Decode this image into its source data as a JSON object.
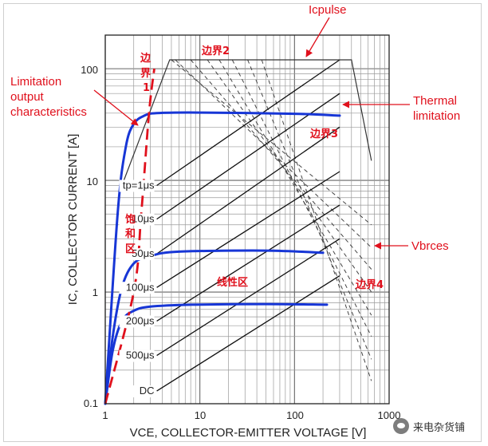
{
  "chart_data": {
    "type": "line",
    "xscale": "log",
    "yscale": "log",
    "xlim": [
      1,
      1000
    ],
    "ylim": [
      0.1,
      200
    ],
    "xlabel": "VCE, COLLECTOR-EMITTER VOLTAGE [V]",
    "ylabel": "IC, COLLECTOR CURRENT [A]",
    "x_ticks": [
      "1",
      "10",
      "100",
      "1000"
    ],
    "y_ticks": [
      "0.1",
      "1",
      "10",
      "100"
    ],
    "soa_boundary": [
      [
        1.5,
        9
      ],
      [
        4.8,
        120
      ],
      [
        400,
        120
      ],
      [
        650,
        15
      ]
    ],
    "pulse_lines": [
      {
        "label": "tp=1μs",
        "points": [
          [
            3.5,
            9
          ],
          [
            300,
            120
          ]
        ]
      },
      {
        "label": "10μs",
        "points": [
          [
            3.5,
            4.5
          ],
          [
            300,
            60
          ]
        ]
      },
      {
        "label": "50μs",
        "points": [
          [
            3.5,
            2.2
          ],
          [
            300,
            30
          ]
        ]
      },
      {
        "label": "100μs",
        "points": [
          [
            3.5,
            1.1
          ],
          [
            300,
            12
          ]
        ]
      },
      {
        "label": "200μs",
        "points": [
          [
            3.5,
            0.55
          ],
          [
            300,
            6
          ]
        ]
      },
      {
        "label": "500μs",
        "points": [
          [
            3.5,
            0.27
          ],
          [
            300,
            3
          ]
        ]
      },
      {
        "label": "DC",
        "points": [
          [
            3.5,
            0.13
          ],
          [
            300,
            1.4
          ]
        ]
      }
    ],
    "dashed_limits": [
      {
        "points": [
          [
            5.0,
            120
          ],
          [
            650,
            4
          ]
        ]
      },
      {
        "points": [
          [
            5.5,
            120
          ],
          [
            650,
            2.5
          ]
        ]
      },
      {
        "points": [
          [
            8.0,
            120
          ],
          [
            650,
            1.6
          ]
        ]
      },
      {
        "points": [
          [
            12,
            120
          ],
          [
            650,
            1.0
          ]
        ]
      },
      {
        "points": [
          [
            16,
            120
          ],
          [
            650,
            0.62
          ]
        ]
      },
      {
        "points": [
          [
            22,
            120
          ],
          [
            650,
            0.4
          ]
        ]
      },
      {
        "points": [
          [
            32,
            120
          ],
          [
            650,
            0.25
          ]
        ]
      },
      {
        "points": [
          [
            45,
            120
          ],
          [
            650,
            0.16
          ]
        ]
      }
    ],
    "output_curves": [
      {
        "name": "high",
        "points": [
          [
            1,
            0.1
          ],
          [
            1.35,
            5
          ],
          [
            1.65,
            20
          ],
          [
            2.0,
            32
          ],
          [
            2.6,
            38
          ],
          [
            3.5,
            40
          ],
          [
            10,
            40.5
          ],
          [
            100,
            39.5
          ],
          [
            300,
            38
          ]
        ]
      },
      {
        "name": "mid",
        "points": [
          [
            1,
            0.1
          ],
          [
            1.2,
            0.4
          ],
          [
            1.5,
            1.1
          ],
          [
            2.0,
            1.8
          ],
          [
            3.0,
            2.1
          ],
          [
            6,
            2.3
          ],
          [
            50,
            2.35
          ],
          [
            200,
            2.25
          ]
        ]
      },
      {
        "name": "low",
        "points": [
          [
            1,
            0.1
          ],
          [
            1.2,
            0.3
          ],
          [
            1.5,
            0.55
          ],
          [
            2.0,
            0.68
          ],
          [
            3.0,
            0.74
          ],
          [
            8,
            0.77
          ],
          [
            50,
            0.78
          ],
          [
            220,
            0.77
          ]
        ]
      }
    ],
    "saturation_boundary": [
      [
        1,
        0.1
      ],
      [
        2.0,
        1.0
      ],
      [
        2.4,
        5
      ],
      [
        2.9,
        40
      ],
      [
        3.3,
        100
      ]
    ],
    "annotations": {
      "icpulse": "Icpulse",
      "limitation": [
        "Limitation",
        "output",
        "characteristics"
      ],
      "thermal": [
        "Thermal",
        "limitation"
      ],
      "vbrces": "Vbrces",
      "b1": [
        "边",
        "界",
        "1"
      ],
      "b2": "边界2",
      "b3": "边界3",
      "b4": "边界4",
      "sat": [
        "饱",
        "和",
        "区"
      ],
      "linear": "线性区"
    }
  },
  "watermark": "来电杂货铺"
}
